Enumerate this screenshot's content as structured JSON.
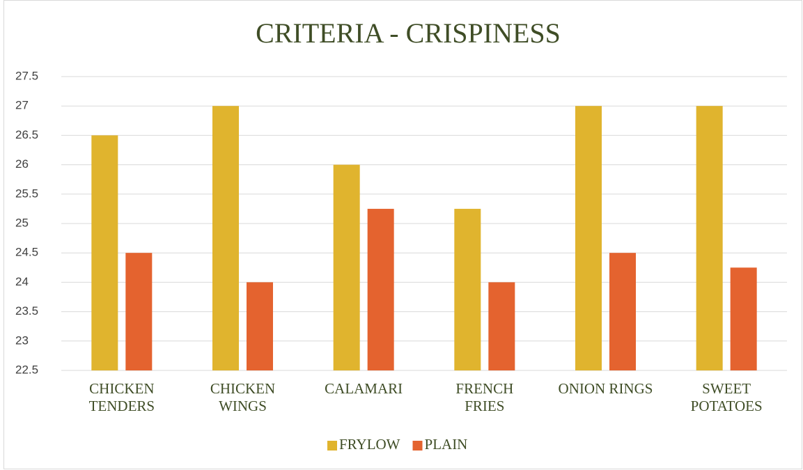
{
  "chart_data": {
    "type": "bar",
    "title": "CRITERIA - CRISPINESS",
    "categories": [
      "CHICKEN\nTENDERS",
      "CHICKEN\nWINGS",
      "CALAMARI",
      "FRENCH\nFRIES",
      "ONION RINGS",
      "SWEET\nPOTATOES"
    ],
    "series": [
      {
        "name": "FRYLOW",
        "color": "#e0b42e",
        "values": [
          26.5,
          27,
          26,
          25.25,
          27,
          27
        ]
      },
      {
        "name": "PLAIN",
        "color": "#e4632f",
        "values": [
          24.5,
          24,
          25.25,
          24,
          24.5,
          24.25
        ]
      }
    ],
    "ylim": [
      22.5,
      27.5
    ],
    "yticks": [
      22.5,
      23,
      23.5,
      24,
      24.5,
      25,
      25.5,
      26,
      26.5,
      27,
      27.5
    ],
    "grid": true,
    "legend": "bottom"
  }
}
